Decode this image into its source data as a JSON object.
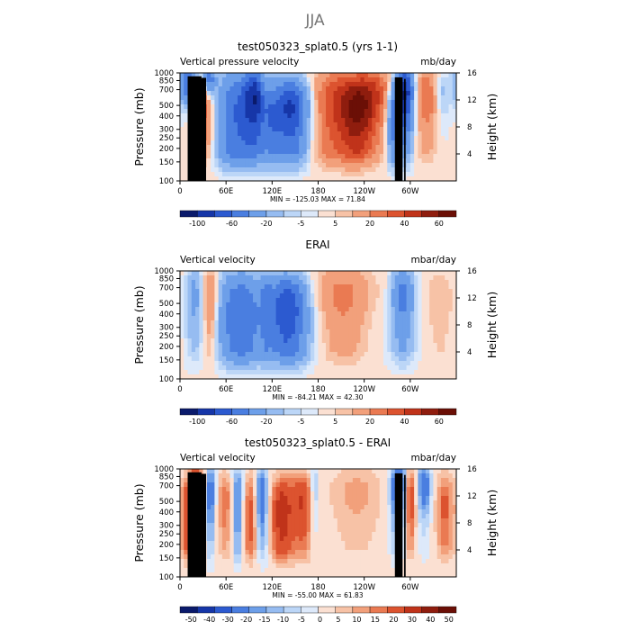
{
  "figure_title": "JJA",
  "colors": {
    "levels": [
      "#0a1a6b",
      "#1636a8",
      "#2c5ad0",
      "#4a7ee0",
      "#6d9fe9",
      "#96bcf1",
      "#bcd6f7",
      "#dde9fa",
      "#fbe0d2",
      "#f7c2a6",
      "#f2a07b",
      "#ea7a52",
      "#dc532f",
      "#c0331a",
      "#8f1d0e",
      "#6b0f06"
    ],
    "frame": "#000000",
    "title_gray": "#777777"
  },
  "chart_data": [
    {
      "type": "heatmap",
      "id": "panel1",
      "title": "test050323_splat0.5 (yrs 1-1)",
      "left_label": "Vertical pressure velocity",
      "right_label": "mb/day",
      "ylabel": "Pressure (mb)",
      "ylabel_right": "Height (km)",
      "xticks": [
        "0",
        "60E",
        "120E",
        "180",
        "120W",
        "60W"
      ],
      "xtick_values": [
        0,
        60,
        120,
        180,
        240,
        300
      ],
      "xlim": [
        0,
        360
      ],
      "yticks": [
        "100",
        "150",
        "200",
        "250",
        "300",
        "400",
        "500",
        "700",
        "850",
        "1000"
      ],
      "ytick_values": [
        100,
        150,
        200,
        250,
        300,
        400,
        500,
        700,
        850,
        1000
      ],
      "ylim": [
        1000,
        100
      ],
      "height_ticks": [
        "4",
        "8",
        "12",
        "16"
      ],
      "height_values": [
        4,
        8,
        12,
        16
      ],
      "stats": "MIN = -125.03   MAX =  71.84",
      "colorbar_levels": [
        "-100",
        "-60",
        "-20",
        "-5",
        "5",
        "20",
        "40",
        "60"
      ],
      "features": [
        {
          "lon": 30,
          "p": 550,
          "amp": 45,
          "wlon": 11,
          "wp": 300
        },
        {
          "lon": 12,
          "p": 800,
          "amp": -70,
          "wlon": 9,
          "wp": 200
        },
        {
          "lon": 38,
          "p": 850,
          "amp": -60,
          "wlon": 6,
          "wp": 180
        },
        {
          "lon": 75,
          "p": 420,
          "amp": -60,
          "wlon": 20,
          "wp": 400
        },
        {
          "lon": 98,
          "p": 620,
          "amp": -70,
          "wlon": 10,
          "wp": 300
        },
        {
          "lon": 108,
          "p": 750,
          "amp": 12,
          "wlon": 4,
          "wp": 180
        },
        {
          "lon": 145,
          "p": 480,
          "amp": -90,
          "wlon": 18,
          "wp": 280
        },
        {
          "lon": 120,
          "p": 330,
          "amp": -25,
          "wlon": 8,
          "wp": 200
        },
        {
          "lon": 200,
          "p": 500,
          "amp": 35,
          "wlon": 30,
          "wp": 380
        },
        {
          "lon": 245,
          "p": 650,
          "amp": 40,
          "wlon": 24,
          "wp": 300
        },
        {
          "lon": 232,
          "p": 350,
          "amp": 22,
          "wlon": 15,
          "wp": 200
        },
        {
          "lon": 292,
          "p": 650,
          "amp": -110,
          "wlon": 9,
          "wp": 300
        },
        {
          "lon": 278,
          "p": 350,
          "amp": -40,
          "wlon": 7,
          "wp": 250
        },
        {
          "lon": 322,
          "p": 620,
          "amp": 32,
          "wlon": 14,
          "wp": 300
        },
        {
          "lon": 340,
          "p": 650,
          "amp": -22,
          "wlon": 8,
          "wp": 250
        }
      ],
      "has_topography": true
    },
    {
      "type": "heatmap",
      "id": "panel2",
      "title": "ERAI",
      "left_label": "Vertical velocity",
      "right_label": "mbar/day",
      "ylabel": "Pressure (mb)",
      "ylabel_right": "Height (km)",
      "xticks": [
        "0",
        "60E",
        "120E",
        "180",
        "120W",
        "60W"
      ],
      "xtick_values": [
        0,
        60,
        120,
        180,
        240,
        300
      ],
      "xlim": [
        0,
        360
      ],
      "yticks": [
        "100",
        "150",
        "200",
        "250",
        "300",
        "400",
        "500",
        "700",
        "850",
        "1000"
      ],
      "ytick_values": [
        100,
        150,
        200,
        250,
        300,
        400,
        500,
        700,
        850,
        1000
      ],
      "ylim": [
        1000,
        100
      ],
      "height_ticks": [
        "4",
        "8",
        "12",
        "16"
      ],
      "height_values": [
        4,
        8,
        12,
        16
      ],
      "stats": "MIN = -84.21   MAX =  42.30",
      "colorbar_levels": [
        "-100",
        "-60",
        "-20",
        "-5",
        "5",
        "20",
        "40",
        "60"
      ],
      "features": [
        {
          "lon": 40,
          "p": 550,
          "amp": 30,
          "wlon": 7,
          "wp": 320
        },
        {
          "lon": 18,
          "p": 600,
          "amp": -25,
          "wlon": 8,
          "wp": 300
        },
        {
          "lon": 78,
          "p": 420,
          "amp": -55,
          "wlon": 20,
          "wp": 380
        },
        {
          "lon": 140,
          "p": 470,
          "amp": -75,
          "wlon": 18,
          "wp": 300
        },
        {
          "lon": 112,
          "p": 550,
          "amp": -20,
          "wlon": 5,
          "wp": 300
        },
        {
          "lon": 212,
          "p": 480,
          "amp": 26,
          "wlon": 28,
          "wp": 420
        },
        {
          "lon": 290,
          "p": 600,
          "amp": -48,
          "wlon": 10,
          "wp": 300
        },
        {
          "lon": 338,
          "p": 520,
          "amp": 10,
          "wlon": 14,
          "wp": 350
        },
        {
          "lon": 180,
          "p": 250,
          "amp": -8,
          "wlon": 80,
          "wp": 200
        }
      ],
      "has_topography": false
    },
    {
      "type": "heatmap",
      "id": "panel3",
      "title": "test050323_splat0.5 - ERAI",
      "left_label": "Vertical velocity",
      "right_label": "mbar/day",
      "ylabel": "Pressure (mb)",
      "ylabel_right": "Height (km)",
      "xticks": [
        "0",
        "60E",
        "120E",
        "180",
        "120W",
        "60W"
      ],
      "xtick_values": [
        0,
        60,
        120,
        180,
        240,
        300
      ],
      "xlim": [
        0,
        360
      ],
      "yticks": [
        "100",
        "150",
        "200",
        "250",
        "300",
        "400",
        "500",
        "700",
        "850",
        "1000"
      ],
      "ytick_values": [
        100,
        150,
        200,
        250,
        300,
        400,
        500,
        700,
        850,
        1000
      ],
      "ylim": [
        1000,
        100
      ],
      "height_ticks": [
        "4",
        "8",
        "12",
        "16"
      ],
      "height_values": [
        4,
        8,
        12,
        16
      ],
      "stats": "MIN = -55.00   MAX =  61.83",
      "colorbar_levels": [
        "-50",
        "-40",
        "-30",
        "-20",
        "-15",
        "-10",
        "-5",
        "0",
        "5",
        "10",
        "15",
        "20",
        "30",
        "40",
        "50"
      ],
      "features": [
        {
          "lon": 15,
          "p": 400,
          "amp": 40,
          "wlon": 8,
          "wp": 300
        },
        {
          "lon": 22,
          "p": 750,
          "amp": 30,
          "wlon": 6,
          "wp": 200
        },
        {
          "lon": 40,
          "p": 600,
          "amp": -30,
          "wlon": 5,
          "wp": 300
        },
        {
          "lon": 60,
          "p": 500,
          "amp": 20,
          "wlon": 9,
          "wp": 300
        },
        {
          "lon": 75,
          "p": 500,
          "amp": -30,
          "wlon": 6,
          "wp": 350
        },
        {
          "lon": 92,
          "p": 400,
          "amp": 25,
          "wlon": 8,
          "wp": 350
        },
        {
          "lon": 106,
          "p": 550,
          "amp": -35,
          "wlon": 6,
          "wp": 300
        },
        {
          "lon": 132,
          "p": 400,
          "amp": 35,
          "wlon": 10,
          "wp": 300
        },
        {
          "lon": 160,
          "p": 500,
          "amp": 30,
          "wlon": 12,
          "wp": 300
        },
        {
          "lon": 175,
          "p": 600,
          "amp": -20,
          "wlon": 5,
          "wp": 300
        },
        {
          "lon": 230,
          "p": 600,
          "amp": 12,
          "wlon": 25,
          "wp": 350
        },
        {
          "lon": 285,
          "p": 650,
          "amp": -45,
          "wlon": 7,
          "wp": 300
        },
        {
          "lon": 300,
          "p": 550,
          "amp": 30,
          "wlon": 5,
          "wp": 300
        },
        {
          "lon": 318,
          "p": 700,
          "amp": -30,
          "wlon": 6,
          "wp": 250
        },
        {
          "lon": 345,
          "p": 450,
          "amp": 22,
          "wlon": 8,
          "wp": 300
        }
      ],
      "has_topography": true
    }
  ]
}
